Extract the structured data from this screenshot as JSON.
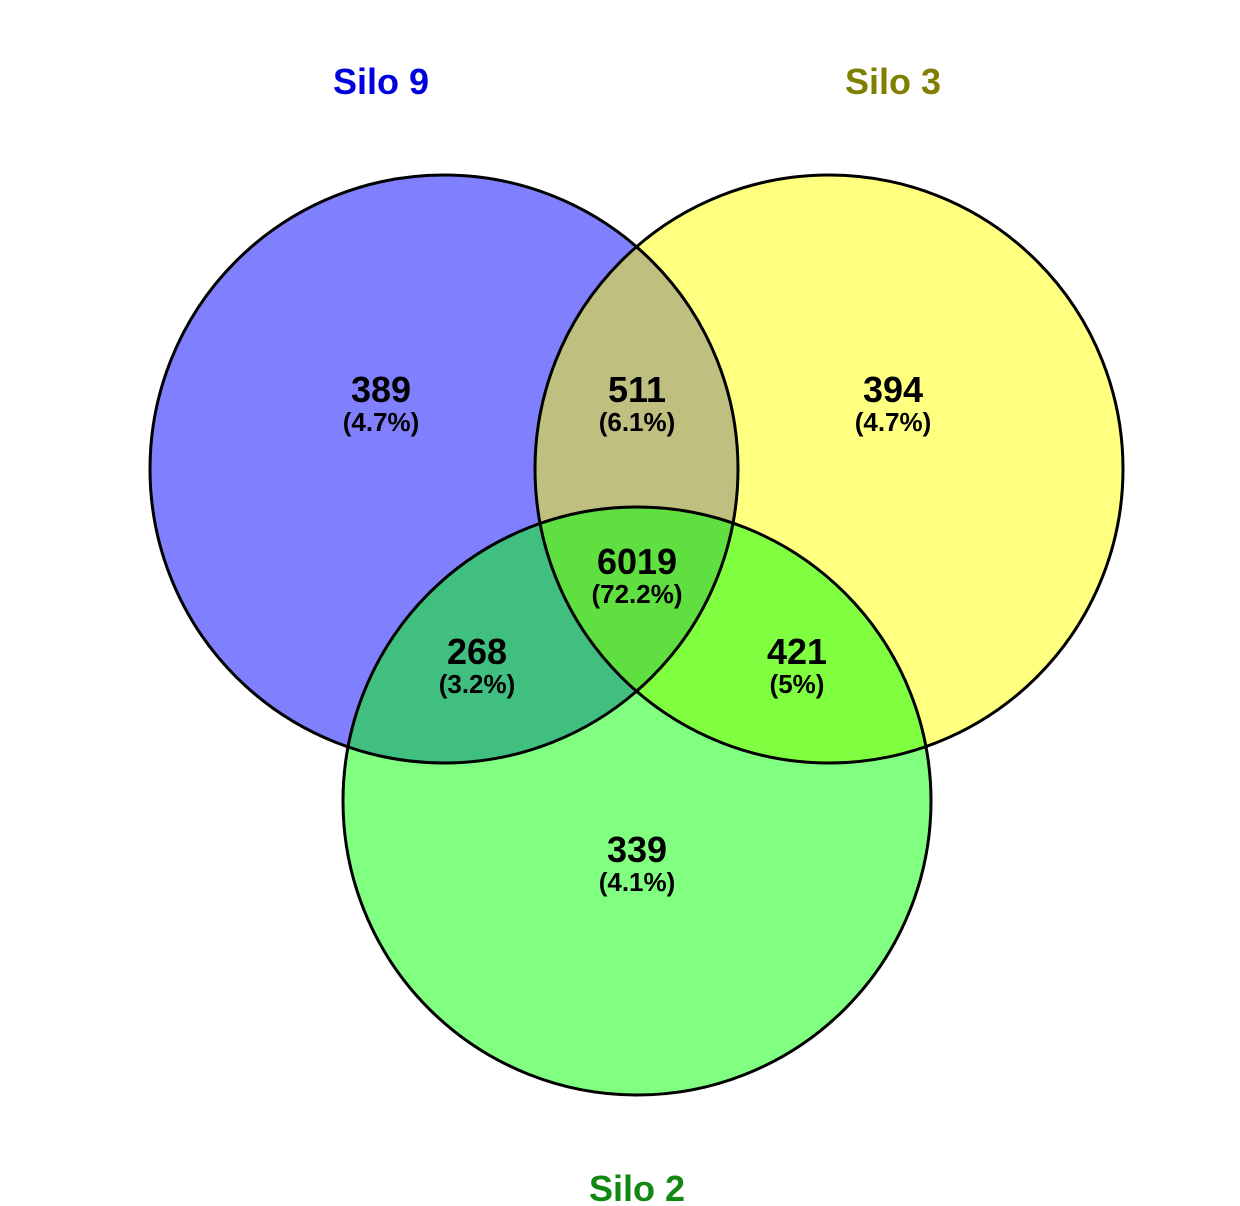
{
  "sets": [
    {
      "id": "silo9",
      "label": "Silo 9",
      "fill": "#8080ff",
      "label_color": "#0000dd"
    },
    {
      "id": "silo3",
      "label": "Silo 3",
      "fill": "#ffff80",
      "label_color": "#808000"
    },
    {
      "id": "silo2",
      "label": "Silo 2",
      "fill": "#80ff80",
      "label_color": "#118811"
    }
  ],
  "regions": {
    "silo9_only": {
      "count": "389",
      "percent": "(4.7%)"
    },
    "silo3_only": {
      "count": "394",
      "percent": "(4.7%)"
    },
    "silo2_only": {
      "count": "339",
      "percent": "(4.1%)"
    },
    "silo9_silo3": {
      "count": "511",
      "percent": "(6.1%)"
    },
    "silo9_silo2": {
      "count": "268",
      "percent": "(3.2%)"
    },
    "silo3_silo2": {
      "count": "421",
      "percent": "(5%)"
    },
    "all_three": {
      "count": "6019",
      "percent": "(72.2%)"
    }
  },
  "colors": {
    "outline": "#000000",
    "silo9_silo3_fill": "#bfbf80",
    "silo9_silo2_fill": "#40bf80",
    "silo3_silo2_fill": "#80ff40",
    "all_three_fill": "#60df40"
  }
}
